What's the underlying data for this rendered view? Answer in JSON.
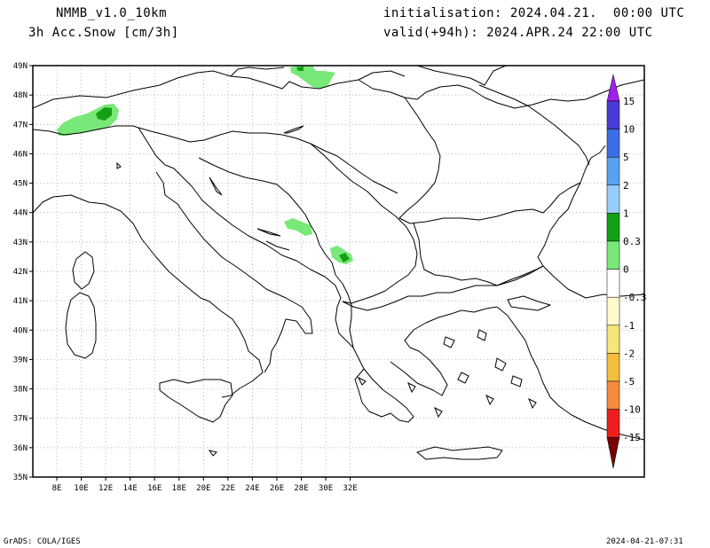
{
  "header": {
    "model": "NMMB_v1.0_10km",
    "field": "3h Acc.Snow [cm/3h]",
    "init": "initialisation: 2024.04.21.  00:00 UTC",
    "valid": "valid(+94h): 2024.APR.24 22:00 UTC"
  },
  "footer": {
    "left": "GrADS: COLA/IGES",
    "right": "2024-04-21-07:31"
  },
  "map": {
    "lon_labels": [
      "8E",
      "10E",
      "12E",
      "14E",
      "16E",
      "18E",
      "20E",
      "22E",
      "24E",
      "26E",
      "28E",
      "30E",
      "32E"
    ],
    "lat_labels": [
      "49N",
      "48N",
      "47N",
      "46N",
      "45N",
      "44N",
      "43N",
      "42N",
      "41N",
      "40N",
      "39N",
      "38N",
      "37N",
      "36N",
      "35N"
    ]
  },
  "colorbar": {
    "labels": [
      "15",
      "10",
      "5",
      "2",
      "1",
      "0.3",
      "0",
      "-0.3",
      "-1",
      "-2",
      "-5",
      "-10",
      "-15"
    ],
    "colors": [
      "#4b3bd6",
      "#3c6ee6",
      "#5aa0f0",
      "#96cdfa",
      "#14a014",
      "#78e878",
      "#ffffff",
      "#fffacd",
      "#f5e678",
      "#f5be3c",
      "#f58c3c",
      "#f01e1e",
      "#b40000",
      "#780000"
    ],
    "top_color": "#a020f0"
  },
  "colors": {
    "snow_light": "#78e878",
    "snow_medium": "#14a014"
  }
}
